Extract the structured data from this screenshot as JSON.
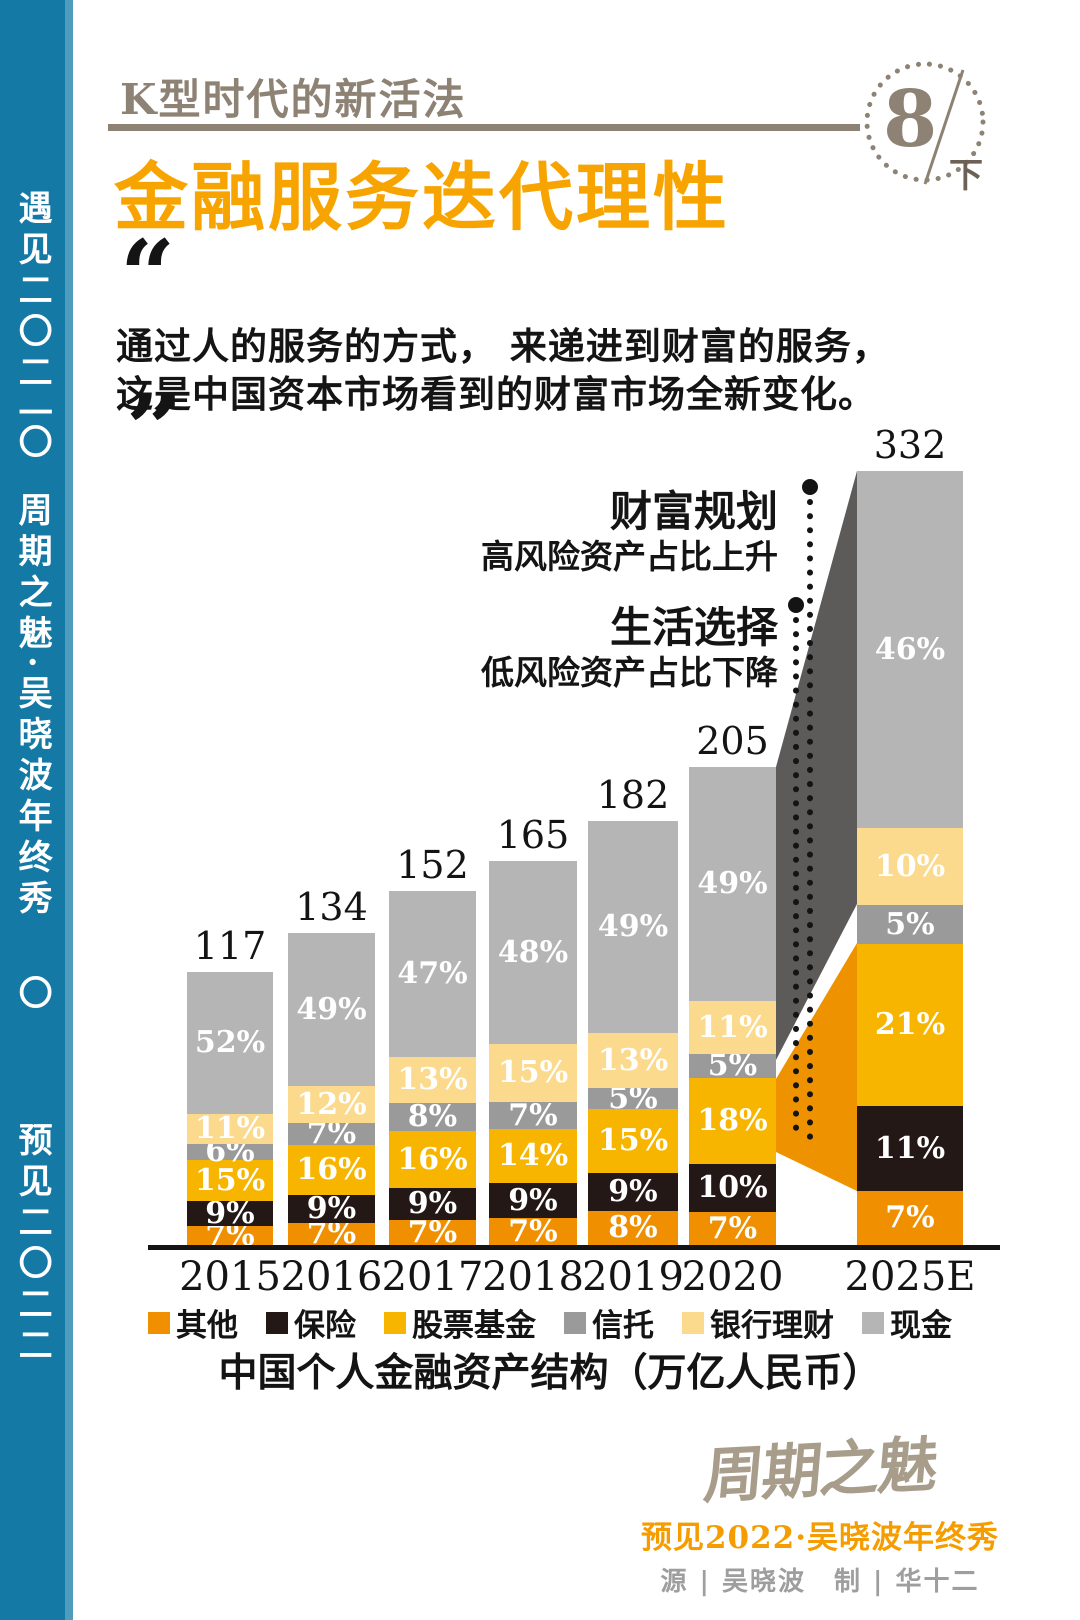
{
  "colors": {
    "sidebar_blue": "#1579a6",
    "sidebar_edge": "#4f9dbd",
    "taupe": "#8d8274",
    "title_orange": "#f7a400",
    "axis_black": "#141414",
    "flow_dark": "#5d5a5a",
    "flow_orange": "#ee9200",
    "footer_logo": "#a89c8b",
    "footer_orange": "#f59d00",
    "footer_credits": "#9e9e9e"
  },
  "sidebar": {
    "top_text": "遇见二〇二一",
    "separator1": "〇",
    "middle_text": "周期之魅·吴晓波年终秀",
    "separator2": "〇",
    "bottom_text": "预见二〇二二"
  },
  "header": {
    "kicker": "K型时代的新活法",
    "title": "金融服务迭代理性",
    "badge_number": "8",
    "badge_suffix": "下"
  },
  "quote": {
    "open_mark": "“",
    "line1": "通过人的服务的方式， 来递进到财富的服务，",
    "line2": "这是中国资本市场看到的财富市场全新变化。",
    "close_mark": "”"
  },
  "annotations": [
    {
      "title": "财富规划",
      "subtitle": "高风险资产占比上升"
    },
    {
      "title": "生活选择",
      "subtitle": "低风险资产占比下降"
    }
  ],
  "chart_data": {
    "type": "bar",
    "stacked": true,
    "title": "中国个人金融资产结构（万亿人民币）",
    "unit": "万亿人民币",
    "categories": [
      "2015",
      "2016",
      "2017",
      "2018",
      "2019",
      "2020",
      "2025E"
    ],
    "totals": [
      117,
      134,
      152,
      165,
      182,
      205,
      332
    ],
    "series": [
      {
        "name": "其他",
        "color": "#f09000",
        "values_pct": [
          7,
          7,
          7,
          7,
          8,
          7,
          7
        ]
      },
      {
        "name": "保险",
        "color": "#231815",
        "values_pct": [
          9,
          9,
          9,
          9,
          9,
          10,
          11
        ]
      },
      {
        "name": "股票基金",
        "color": "#f8b500",
        "values_pct": [
          15,
          16,
          16,
          14,
          15,
          18,
          21
        ]
      },
      {
        "name": "信托",
        "color": "#9a9a9a",
        "values_pct": [
          6,
          7,
          8,
          7,
          5,
          5,
          5
        ]
      },
      {
        "name": "银行理财",
        "color": "#fbda8e",
        "values_pct": [
          11,
          12,
          13,
          15,
          13,
          11,
          10
        ]
      },
      {
        "name": "现金",
        "color": "#b5b5b6",
        "values_pct": [
          52,
          49,
          47,
          48,
          49,
          49,
          46
        ]
      }
    ],
    "value_suffix": "%",
    "legend_position": "bottom",
    "grid": false
  },
  "footer": {
    "logo": "周期之魅",
    "event": "预见2022·吴晓波年终秀",
    "credits": "源 | 吴晓波　制 | 华十二"
  }
}
